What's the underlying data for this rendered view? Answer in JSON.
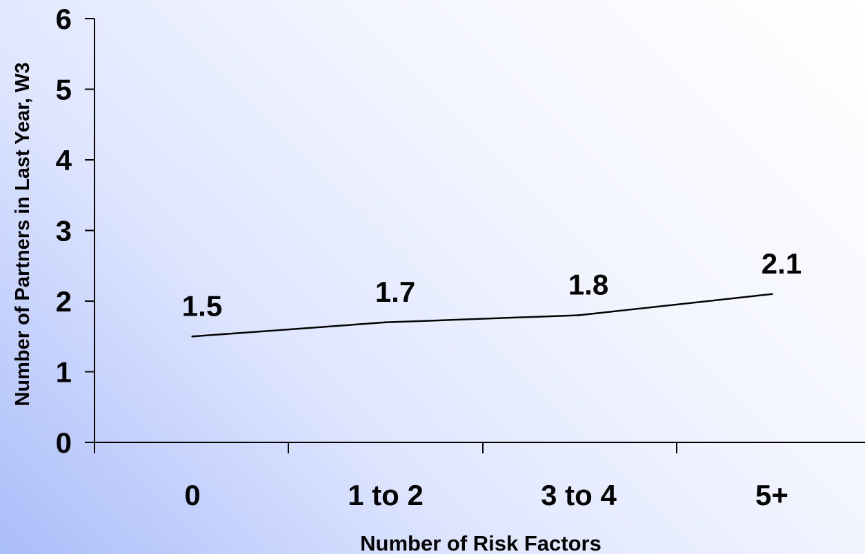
{
  "chart_data": {
    "type": "line",
    "categories": [
      "0",
      "1 to 2",
      "3 to 4",
      "5+"
    ],
    "series": [
      {
        "values": [
          1.5,
          1.7,
          1.8,
          2.1
        ],
        "data_labels": [
          "1.5",
          "1.7",
          "1.8",
          "2.1"
        ]
      }
    ],
    "xlabel": "Number of Risk Factors",
    "ylabel": "Number of Partners in Last Year, W3",
    "ylim": [
      0,
      6
    ],
    "yticks": [
      "0",
      "1",
      "2",
      "3",
      "4",
      "5",
      "6"
    ],
    "grid": false,
    "legend": "none"
  }
}
